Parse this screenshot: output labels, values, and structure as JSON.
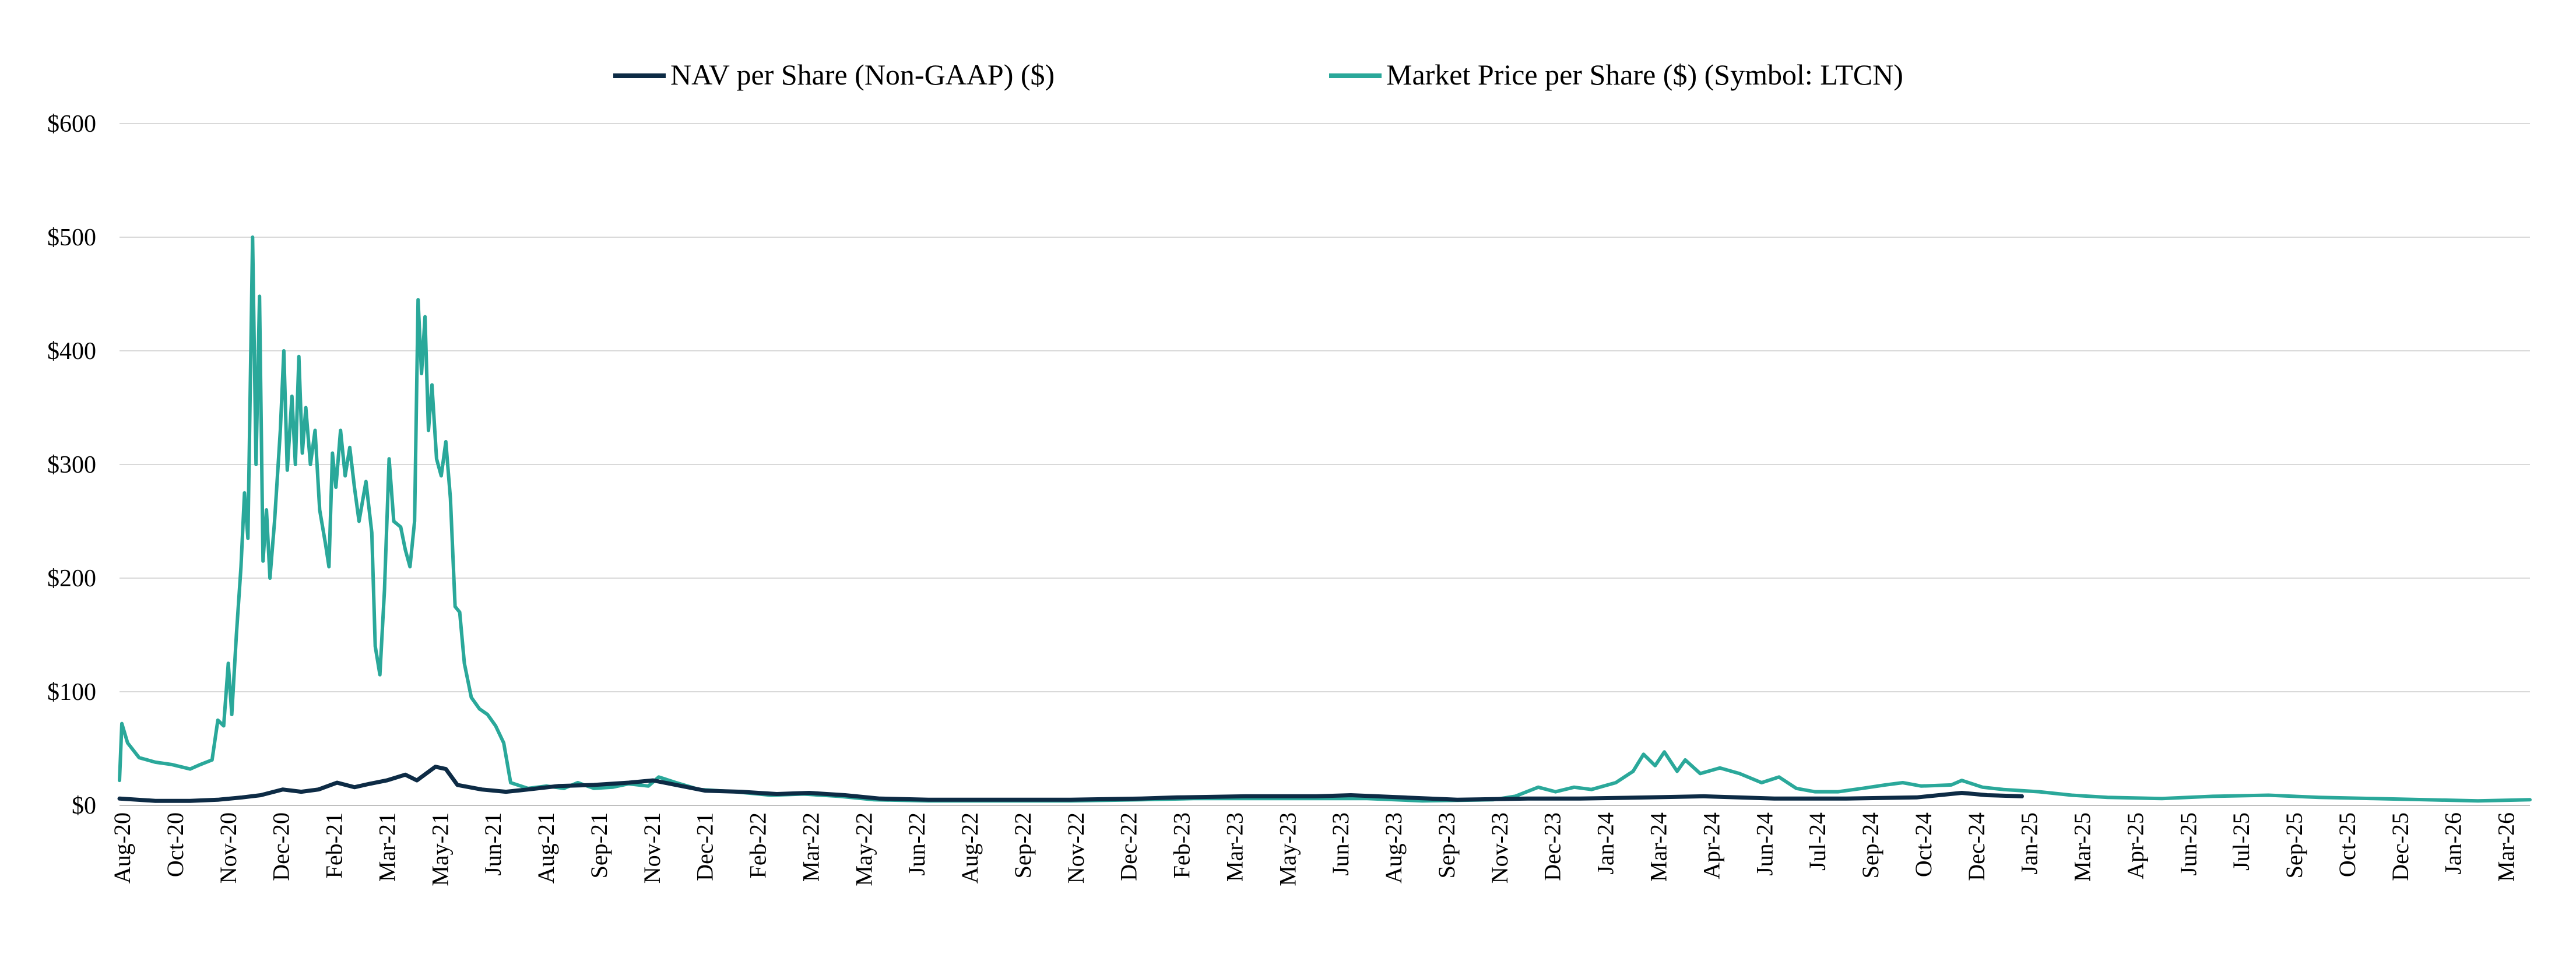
{
  "chart_data": {
    "type": "line",
    "title": "",
    "xlabel": "",
    "ylabel": "",
    "ylim": [
      0,
      600
    ],
    "yticks": [
      0,
      100,
      200,
      300,
      400,
      500,
      600
    ],
    "ytick_labels": [
      "$0",
      "$100",
      "$200",
      "$300",
      "$400",
      "$500",
      "$600"
    ],
    "grid": "horizontal",
    "legend_position": "top-center",
    "x_range": [
      "2020-08-01",
      "2026-04-15"
    ],
    "xtick_labels": [
      "Aug-20",
      "Oct-20",
      "Nov-20",
      "Dec-20",
      "Feb-21",
      "Mar-21",
      "May-21",
      "Jun-21",
      "Aug-21",
      "Sep-21",
      "Nov-21",
      "Dec-21",
      "Feb-22",
      "Mar-22",
      "May-22",
      "Jun-22",
      "Aug-22",
      "Sep-22",
      "Nov-22",
      "Dec-22",
      "Feb-23",
      "Mar-23",
      "May-23",
      "Jun-23",
      "Aug-23",
      "Sep-23",
      "Nov-23",
      "Dec-23",
      "Jan-24",
      "Mar-24",
      "Apr-24",
      "Jun-24",
      "Jul-24",
      "Sep-24",
      "Oct-24",
      "Dec-24",
      "Jan-25",
      "Mar-25",
      "Apr-25",
      "Jun-25",
      "Jul-25",
      "Sep-25",
      "Oct-25",
      "Dec-25",
      "Jan-26",
      "Mar-26"
    ],
    "series": [
      {
        "name": "NAV per Share (Non-GAAP) ($)",
        "color": "#0d2b45",
        "points": [
          [
            "2020-08-01",
            6
          ],
          [
            "2020-09-01",
            4
          ],
          [
            "2020-10-01",
            4
          ],
          [
            "2020-10-25",
            5
          ],
          [
            "2020-11-15",
            7
          ],
          [
            "2020-12-01",
            9
          ],
          [
            "2020-12-20",
            14
          ],
          [
            "2021-01-05",
            12
          ],
          [
            "2021-01-20",
            14
          ],
          [
            "2021-02-05",
            20
          ],
          [
            "2021-02-20",
            16
          ],
          [
            "2021-03-05",
            19
          ],
          [
            "2021-03-20",
            22
          ],
          [
            "2021-04-05",
            27
          ],
          [
            "2021-04-15",
            22
          ],
          [
            "2021-05-01",
            34
          ],
          [
            "2021-05-10",
            32
          ],
          [
            "2021-05-20",
            18
          ],
          [
            "2021-06-10",
            14
          ],
          [
            "2021-07-01",
            12
          ],
          [
            "2021-07-20",
            14
          ],
          [
            "2021-08-15",
            17
          ],
          [
            "2021-09-15",
            18
          ],
          [
            "2021-10-15",
            20
          ],
          [
            "2021-11-05",
            22
          ],
          [
            "2021-11-25",
            18
          ],
          [
            "2021-12-20",
            13
          ],
          [
            "2022-01-20",
            12
          ],
          [
            "2022-02-20",
            10
          ],
          [
            "2022-03-20",
            11
          ],
          [
            "2022-04-20",
            9
          ],
          [
            "2022-05-20",
            6
          ],
          [
            "2022-07-01",
            5
          ],
          [
            "2022-09-01",
            5
          ],
          [
            "2022-11-01",
            5
          ],
          [
            "2023-01-01",
            6
          ],
          [
            "2023-02-01",
            7
          ],
          [
            "2023-04-01",
            8
          ],
          [
            "2023-06-01",
            8
          ],
          [
            "2023-07-01",
            9
          ],
          [
            "2023-08-15",
            7
          ],
          [
            "2023-10-01",
            5
          ],
          [
            "2023-12-01",
            6
          ],
          [
            "2024-01-15",
            6
          ],
          [
            "2024-03-15",
            7
          ],
          [
            "2024-05-01",
            8
          ],
          [
            "2024-07-01",
            6
          ],
          [
            "2024-09-01",
            6
          ],
          [
            "2024-11-01",
            7
          ],
          [
            "2024-12-10",
            11
          ],
          [
            "2025-01-01",
            9
          ],
          [
            "2025-01-31",
            8
          ]
        ]
      },
      {
        "name": "Market Price per Share ($) (Symbol: LTCN)",
        "color": "#2aa89a",
        "points": [
          [
            "2020-08-01",
            22
          ],
          [
            "2020-08-03",
            72
          ],
          [
            "2020-08-08",
            55
          ],
          [
            "2020-08-18",
            42
          ],
          [
            "2020-09-01",
            38
          ],
          [
            "2020-09-15",
            36
          ],
          [
            "2020-10-01",
            32
          ],
          [
            "2020-10-10",
            36
          ],
          [
            "2020-10-20",
            40
          ],
          [
            "2020-10-25",
            75
          ],
          [
            "2020-10-30",
            70
          ],
          [
            "2020-11-03",
            125
          ],
          [
            "2020-11-06",
            80
          ],
          [
            "2020-11-10",
            150
          ],
          [
            "2020-11-14",
            210
          ],
          [
            "2020-11-17",
            275
          ],
          [
            "2020-11-20",
            235
          ],
          [
            "2020-11-24",
            500
          ],
          [
            "2020-11-27",
            300
          ],
          [
            "2020-11-30",
            448
          ],
          [
            "2020-12-03",
            215
          ],
          [
            "2020-12-06",
            260
          ],
          [
            "2020-12-09",
            200
          ],
          [
            "2020-12-13",
            250
          ],
          [
            "2020-12-18",
            330
          ],
          [
            "2020-12-21",
            400
          ],
          [
            "2020-12-24",
            295
          ],
          [
            "2020-12-28",
            360
          ],
          [
            "2020-12-31",
            300
          ],
          [
            "2021-01-03",
            395
          ],
          [
            "2021-01-06",
            310
          ],
          [
            "2021-01-09",
            350
          ],
          [
            "2021-01-13",
            300
          ],
          [
            "2021-01-17",
            330
          ],
          [
            "2021-01-21",
            260
          ],
          [
            "2021-01-26",
            230
          ],
          [
            "2021-01-29",
            210
          ],
          [
            "2021-02-01",
            310
          ],
          [
            "2021-02-04",
            280
          ],
          [
            "2021-02-08",
            330
          ],
          [
            "2021-02-12",
            290
          ],
          [
            "2021-02-16",
            315
          ],
          [
            "2021-02-20",
            280
          ],
          [
            "2021-02-24",
            250
          ],
          [
            "2021-03-02",
            285
          ],
          [
            "2021-03-07",
            240
          ],
          [
            "2021-03-10",
            140
          ],
          [
            "2021-03-14",
            115
          ],
          [
            "2021-03-18",
            190
          ],
          [
            "2021-03-22",
            305
          ],
          [
            "2021-03-26",
            250
          ],
          [
            "2021-04-01",
            245
          ],
          [
            "2021-04-05",
            225
          ],
          [
            "2021-04-09",
            210
          ],
          [
            "2021-04-13",
            250
          ],
          [
            "2021-04-16",
            445
          ],
          [
            "2021-04-19",
            380
          ],
          [
            "2021-04-22",
            430
          ],
          [
            "2021-04-25",
            330
          ],
          [
            "2021-04-28",
            370
          ],
          [
            "2021-05-02",
            305
          ],
          [
            "2021-05-06",
            290
          ],
          [
            "2021-05-10",
            320
          ],
          [
            "2021-05-14",
            270
          ],
          [
            "2021-05-18",
            175
          ],
          [
            "2021-05-22",
            170
          ],
          [
            "2021-05-26",
            125
          ],
          [
            "2021-06-01",
            95
          ],
          [
            "2021-06-08",
            85
          ],
          [
            "2021-06-15",
            80
          ],
          [
            "2021-06-22",
            70
          ],
          [
            "2021-06-29",
            55
          ],
          [
            "2021-07-05",
            20
          ],
          [
            "2021-07-20",
            15
          ],
          [
            "2021-08-05",
            17
          ],
          [
            "2021-08-20",
            15
          ],
          [
            "2021-09-01",
            20
          ],
          [
            "2021-09-15",
            15
          ],
          [
            "2021-10-01",
            16
          ],
          [
            "2021-10-15",
            19
          ],
          [
            "2021-11-01",
            17
          ],
          [
            "2021-11-10",
            25
          ],
          [
            "2021-11-25",
            20
          ],
          [
            "2021-12-15",
            14
          ],
          [
            "2022-01-15",
            12
          ],
          [
            "2022-02-15",
            9
          ],
          [
            "2022-03-15",
            10
          ],
          [
            "2022-04-15",
            8
          ],
          [
            "2022-05-15",
            5
          ],
          [
            "2022-07-01",
            4
          ],
          [
            "2022-09-01",
            4
          ],
          [
            "2022-11-01",
            4
          ],
          [
            "2023-01-01",
            5
          ],
          [
            "2023-02-15",
            6
          ],
          [
            "2023-04-01",
            6
          ],
          [
            "2023-06-01",
            6
          ],
          [
            "2023-07-15",
            6
          ],
          [
            "2023-09-01",
            4
          ],
          [
            "2023-11-01",
            5
          ],
          [
            "2023-11-20",
            8
          ],
          [
            "2023-12-10",
            16
          ],
          [
            "2023-12-25",
            12
          ],
          [
            "2024-01-10",
            16
          ],
          [
            "2024-01-25",
            14
          ],
          [
            "2024-02-15",
            20
          ],
          [
            "2024-03-01",
            30
          ],
          [
            "2024-03-10",
            45
          ],
          [
            "2024-03-20",
            35
          ],
          [
            "2024-03-28",
            47
          ],
          [
            "2024-04-08",
            30
          ],
          [
            "2024-04-15",
            40
          ],
          [
            "2024-04-28",
            28
          ],
          [
            "2024-05-15",
            33
          ],
          [
            "2024-06-01",
            28
          ],
          [
            "2024-06-20",
            20
          ],
          [
            "2024-07-05",
            25
          ],
          [
            "2024-07-20",
            15
          ],
          [
            "2024-08-05",
            12
          ],
          [
            "2024-08-25",
            12
          ],
          [
            "2024-09-15",
            15
          ],
          [
            "2024-10-05",
            18
          ],
          [
            "2024-10-20",
            20
          ],
          [
            "2024-11-05",
            17
          ],
          [
            "2024-12-01",
            18
          ],
          [
            "2024-12-10",
            22
          ],
          [
            "2024-12-28",
            16
          ],
          [
            "2025-01-15",
            14
          ],
          [
            "2025-02-15",
            12
          ],
          [
            "2025-03-15",
            9
          ],
          [
            "2025-04-15",
            7
          ],
          [
            "2025-06-01",
            6
          ],
          [
            "2025-07-15",
            8
          ],
          [
            "2025-09-01",
            9
          ],
          [
            "2025-10-15",
            7
          ],
          [
            "2025-12-01",
            6
          ],
          [
            "2026-01-15",
            5
          ],
          [
            "2026-03-01",
            4
          ],
          [
            "2026-04-15",
            5
          ]
        ]
      }
    ]
  }
}
